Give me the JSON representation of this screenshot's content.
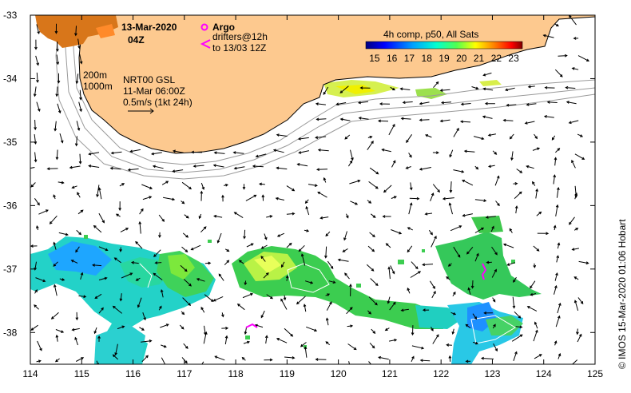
{
  "map": {
    "date": "13-Mar-2020",
    "time": "04Z",
    "legend": {
      "argo": "Argo",
      "drifters": "drifters@12h",
      "drifters_to": "to 13/03 12Z"
    },
    "colorbar": {
      "title": "4h comp, p50, All Sats",
      "ticks": [
        "15",
        "16",
        "17",
        "18",
        "19",
        "20",
        "21",
        "22",
        "23"
      ],
      "min": 15,
      "max": 23.5,
      "colors": [
        "#00007f",
        "#0000ff",
        "#007fff",
        "#00ffff",
        "#7fff7f",
        "#ffff00",
        "#ff7f00",
        "#ff0000",
        "#7f0000"
      ]
    },
    "contours": [
      "200m",
      "1000m"
    ],
    "currents": {
      "product": "NRT00 GSL",
      "date": "11-Mar 06:00Z",
      "scale": "0.5m/s (1kt 24h)"
    },
    "lon_ticks": [
      "114",
      "115",
      "116",
      "117",
      "118",
      "119",
      "120",
      "121",
      "122",
      "123",
      "124",
      "125"
    ],
    "lat_ticks": [
      "-33",
      "-34",
      "-35",
      "-36",
      "-37",
      "-38"
    ],
    "lon_range": [
      114,
      125
    ],
    "lat_range": [
      -38.5,
      -33
    ],
    "credit": "© IMOS 15-Mar-2020 01:06 Hobart",
    "land_color": "#fdc98f",
    "ocean_color": "#ffffff",
    "argo_color": "#ff00ff"
  }
}
